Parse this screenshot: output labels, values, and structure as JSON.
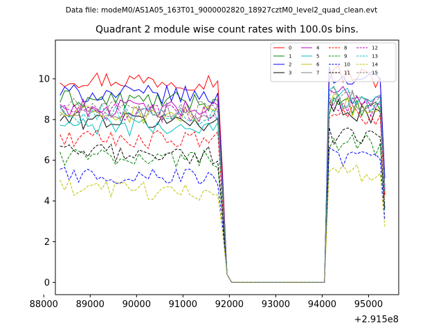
{
  "figure": {
    "suptitle": "Data file: modeM0/AS1A05_163T01_9000002820_18927cztM0_level2_quad_clean.evt"
  },
  "chart_data": {
    "type": "line",
    "title": "Quadrant 2 module wise count rates with 100.0s bins.",
    "xlabel": "",
    "ylabel": "",
    "x_offset_label": "+2.915e8",
    "x_offset": 291500000,
    "x_start": 88350,
    "x_step": 100,
    "xlim": [
      88250,
      95650
    ],
    "ylim": [
      -0.6,
      11.9
    ],
    "xticks": [
      88000,
      89000,
      90000,
      91000,
      92000,
      93000,
      94000,
      95000
    ],
    "yticks": [
      0,
      2,
      4,
      6,
      8,
      10
    ],
    "grid": false,
    "legend": {
      "position": "top-right",
      "columns": 4
    },
    "series": [
      {
        "name": "0",
        "color": "#ff0000",
        "dash": "solid",
        "start_level": 10.0,
        "end_level": 10.3
      },
      {
        "name": "1",
        "color": "#008000",
        "dash": "solid",
        "start_level": 9.0,
        "end_level": 8.7
      },
      {
        "name": "2",
        "color": "#0000ff",
        "dash": "solid",
        "start_level": 9.3,
        "end_level": 10.2
      },
      {
        "name": "3",
        "color": "#000000",
        "dash": "solid",
        "start_level": 8.0,
        "end_level": 8.6
      },
      {
        "name": "4",
        "color": "#bf00bf",
        "dash": "solid",
        "start_level": 8.6,
        "end_level": 9.3
      },
      {
        "name": "5",
        "color": "#00bfbf",
        "dash": "solid",
        "start_level": 7.7,
        "end_level": 9.4
      },
      {
        "name": "6",
        "color": "#bfbf00",
        "dash": "solid",
        "start_level": 8.3,
        "end_level": 8.8
      },
      {
        "name": "7",
        "color": "#808080",
        "dash": "solid",
        "start_level": 8.5,
        "end_level": 9.1
      },
      {
        "name": "8",
        "color": "#ff0000",
        "dash": "dashed",
        "start_level": 7.1,
        "end_level": 8.4
      },
      {
        "name": "9",
        "color": "#008000",
        "dash": "dashed",
        "start_level": 6.2,
        "end_level": 7.0
      },
      {
        "name": "10",
        "color": "#0000ff",
        "dash": "dashed",
        "start_level": 5.3,
        "end_level": 6.2
      },
      {
        "name": "11",
        "color": "#000000",
        "dash": "dashed",
        "start_level": 6.4,
        "end_level": 7.3
      },
      {
        "name": "12",
        "color": "#bf00bf",
        "dash": "dashed",
        "start_level": 8.4,
        "end_level": 8.9
      },
      {
        "name": "13",
        "color": "#00bfbf",
        "dash": "dashed",
        "start_level": 8.3,
        "end_level": 9.0
      },
      {
        "name": "14",
        "color": "#bfbf00",
        "dash": "dashed",
        "start_level": 4.6,
        "end_level": 5.5
      },
      {
        "name": "15",
        "color": "#808080",
        "dash": "dashed",
        "start_level": 8.6,
        "end_level": 9.3
      }
    ]
  }
}
